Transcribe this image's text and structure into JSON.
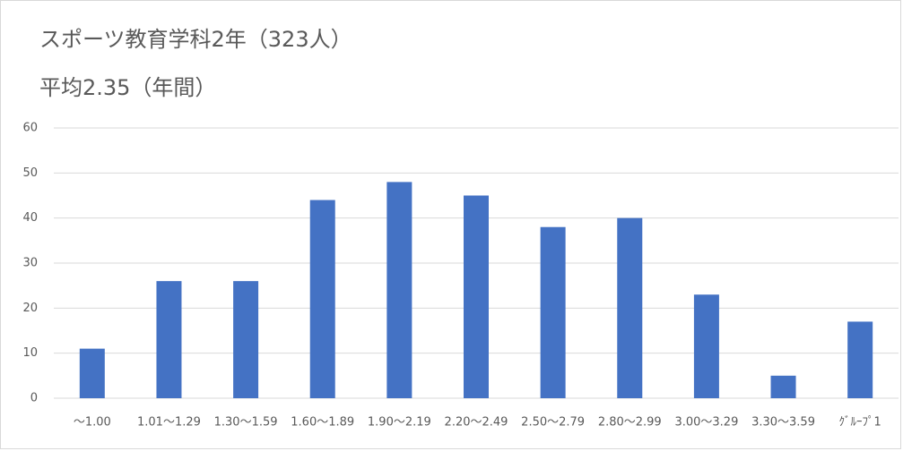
{
  "chart_data": {
    "type": "bar",
    "title": "スポーツ教育学科2年（323人）",
    "subtitle": "平均2.35（年間）",
    "categories": [
      "～1.00",
      "1.01～1.29",
      "1.30～1.59",
      "1.60～1.89",
      "1.90～2.19",
      "2.20～2.49",
      "2.50～2.79",
      "2.80～2.99",
      "3.00～3.29",
      "3.30～3.59",
      "ｸﾞﾙｰﾌﾟ1"
    ],
    "values": [
      11,
      26,
      26,
      44,
      48,
      45,
      38,
      40,
      23,
      5,
      17
    ],
    "color": "#4472c4",
    "ylim": [
      0,
      60
    ],
    "yticks": [
      0,
      10,
      20,
      30,
      40,
      50,
      60
    ],
    "grid": true
  }
}
